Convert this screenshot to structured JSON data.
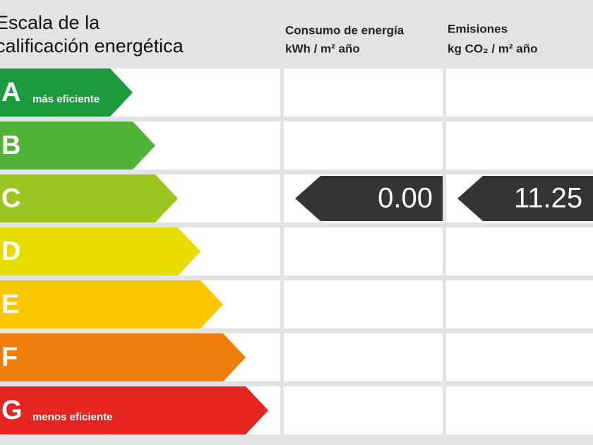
{
  "header": {
    "title_lines": [
      "Escala de la",
      "calificación energética"
    ],
    "columns": [
      {
        "title": "Consumo de energía",
        "unit": "kWh / m² año"
      },
      {
        "title": "Emisiones",
        "unit": "kg CO₂ / m² año"
      }
    ]
  },
  "ratings": [
    {
      "letter": "A",
      "note": "más eficiente",
      "color": "#1b9b3b"
    },
    {
      "letter": "B",
      "color": "#4fb136"
    },
    {
      "letter": "C",
      "color": "#9ec622",
      "consumption": "0.00",
      "emissions": "11.25"
    },
    {
      "letter": "D",
      "color": "#e7dc00"
    },
    {
      "letter": "E",
      "color": "#fcc700"
    },
    {
      "letter": "F",
      "color": "#ef7d0b"
    },
    {
      "letter": "G",
      "note": "menos eficiente",
      "color": "#e42521"
    }
  ]
}
